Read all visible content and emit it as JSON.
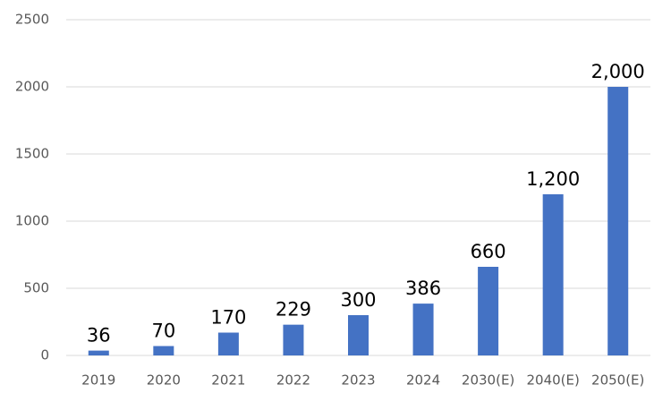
{
  "chart_data": {
    "type": "bar",
    "categories": [
      "2019",
      "2020",
      "2021",
      "2022",
      "2023",
      "2024",
      "2030(E)",
      "2040(E)",
      "2050(E)"
    ],
    "values": [
      36,
      70,
      170,
      229,
      300,
      386,
      660,
      1200,
      2000
    ],
    "value_labels": [
      "36",
      "70",
      "170",
      "229",
      "300",
      "386",
      "660",
      "1,200",
      "2,000"
    ],
    "color": "#4472c4",
    "ylim": [
      0,
      2500
    ],
    "yticks": [
      0,
      500,
      1000,
      1500,
      2000,
      2500
    ],
    "grid": true
  }
}
